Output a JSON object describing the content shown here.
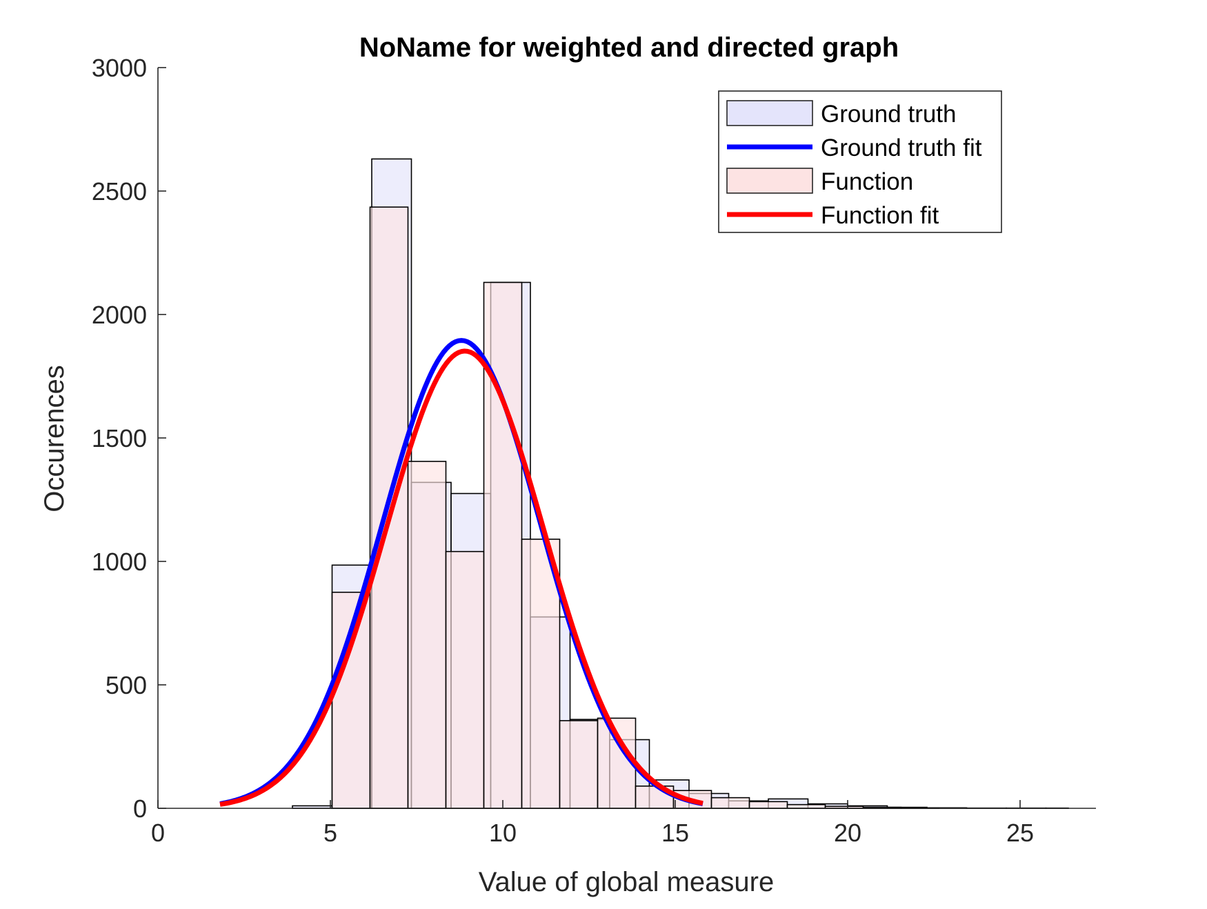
{
  "chart_data": {
    "type": "bar",
    "title": "NoName for weighted and directed graph",
    "xlabel": "Value of global measure",
    "ylabel": "Occurences",
    "xlim": [
      0,
      27.2
    ],
    "ylim": [
      0,
      3000
    ],
    "xticks": [
      0,
      5,
      10,
      15,
      20,
      25
    ],
    "yticks": [
      0,
      500,
      1000,
      1500,
      2000,
      2500,
      3000
    ],
    "grid": false,
    "legend_position": "top-right",
    "colors": {
      "ground_truth_fill": "#e4e4fb",
      "function_fill": "#fde3e3",
      "ground_truth_fit": "#0000ff",
      "function_fit": "#ff0000",
      "bar_edge": "#000000"
    },
    "series": [
      {
        "name": "Ground truth",
        "kind": "histogram",
        "bins": [
          {
            "x0": 3.9,
            "x1": 5.05,
            "count": 10
          },
          {
            "x0": 5.05,
            "x1": 6.2,
            "count": 985
          },
          {
            "x0": 6.2,
            "x1": 7.35,
            "count": 2630
          },
          {
            "x0": 7.35,
            "x1": 8.5,
            "count": 1320
          },
          {
            "x0": 8.5,
            "x1": 9.65,
            "count": 1275
          },
          {
            "x0": 9.65,
            "x1": 10.8,
            "count": 2130
          },
          {
            "x0": 10.8,
            "x1": 11.95,
            "count": 775
          },
          {
            "x0": 11.95,
            "x1": 13.1,
            "count": 360
          },
          {
            "x0": 13.1,
            "x1": 14.25,
            "count": 278
          },
          {
            "x0": 14.25,
            "x1": 15.4,
            "count": 115
          },
          {
            "x0": 15.4,
            "x1": 16.55,
            "count": 60
          },
          {
            "x0": 16.55,
            "x1": 17.7,
            "count": 30
          },
          {
            "x0": 17.7,
            "x1": 18.85,
            "count": 38
          },
          {
            "x0": 18.85,
            "x1": 20.0,
            "count": 18
          },
          {
            "x0": 20.0,
            "x1": 21.15,
            "count": 10
          },
          {
            "x0": 21.15,
            "x1": 22.3,
            "count": 4
          },
          {
            "x0": 22.3,
            "x1": 23.45,
            "count": 2
          },
          {
            "x0": 23.45,
            "x1": 24.6,
            "count": 1
          },
          {
            "x0": 24.6,
            "x1": 25.75,
            "count": 1
          },
          {
            "x0": 25.75,
            "x1": 26.4,
            "count": 1
          }
        ]
      },
      {
        "name": "Ground truth fit",
        "kind": "normal-fit",
        "mean": 8.8,
        "sigma": 2.3,
        "peak": 1895,
        "x_start": 1.8,
        "x_end": 15.8
      },
      {
        "name": "Function",
        "kind": "histogram",
        "bins": [
          {
            "x0": 5.05,
            "x1": 6.15,
            "count": 875
          },
          {
            "x0": 6.15,
            "x1": 7.25,
            "count": 2435
          },
          {
            "x0": 7.25,
            "x1": 8.35,
            "count": 1405
          },
          {
            "x0": 8.35,
            "x1": 9.45,
            "count": 1040
          },
          {
            "x0": 9.45,
            "x1": 10.55,
            "count": 2130
          },
          {
            "x0": 10.55,
            "x1": 11.65,
            "count": 1090
          },
          {
            "x0": 11.65,
            "x1": 12.75,
            "count": 355
          },
          {
            "x0": 12.75,
            "x1": 13.85,
            "count": 365
          },
          {
            "x0": 13.85,
            "x1": 14.95,
            "count": 90
          },
          {
            "x0": 14.95,
            "x1": 16.05,
            "count": 72
          },
          {
            "x0": 16.05,
            "x1": 17.15,
            "count": 43
          },
          {
            "x0": 17.15,
            "x1": 18.25,
            "count": 27
          },
          {
            "x0": 18.25,
            "x1": 19.35,
            "count": 15
          },
          {
            "x0": 19.35,
            "x1": 20.45,
            "count": 8
          },
          {
            "x0": 20.45,
            "x1": 21.55,
            "count": 4
          },
          {
            "x0": 21.55,
            "x1": 22.65,
            "count": 2
          }
        ]
      },
      {
        "name": "Function fit",
        "kind": "normal-fit",
        "mean": 8.9,
        "sigma": 2.3,
        "peak": 1852,
        "x_start": 1.8,
        "x_end": 15.8
      }
    ]
  }
}
